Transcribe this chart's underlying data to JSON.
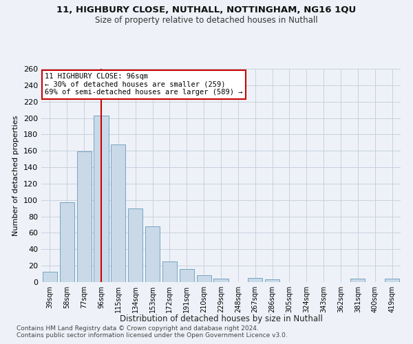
{
  "title1": "11, HIGHBURY CLOSE, NUTHALL, NOTTINGHAM, NG16 1QU",
  "title2": "Size of property relative to detached houses in Nuthall",
  "xlabel": "Distribution of detached houses by size in Nuthall",
  "ylabel": "Number of detached properties",
  "categories": [
    "39sqm",
    "58sqm",
    "77sqm",
    "96sqm",
    "115sqm",
    "134sqm",
    "153sqm",
    "172sqm",
    "191sqm",
    "210sqm",
    "229sqm",
    "248sqm",
    "267sqm",
    "286sqm",
    "305sqm",
    "324sqm",
    "343sqm",
    "362sqm",
    "381sqm",
    "400sqm",
    "419sqm"
  ],
  "values": [
    13,
    97,
    159,
    203,
    168,
    90,
    68,
    25,
    16,
    8,
    4,
    0,
    5,
    3,
    0,
    0,
    0,
    0,
    4,
    0,
    4
  ],
  "bar_color": "#c9d9e8",
  "bar_edge_color": "#6699bb",
  "highlight_bar_index": 3,
  "highlight_color": "#cc0000",
  "ylim": [
    0,
    260
  ],
  "yticks": [
    0,
    20,
    40,
    60,
    80,
    100,
    120,
    140,
    160,
    180,
    200,
    220,
    240,
    260
  ],
  "annotation_text": "11 HIGHBURY CLOSE: 96sqm\n← 30% of detached houses are smaller (259)\n69% of semi-detached houses are larger (589) →",
  "annotation_box_color": "#ffffff",
  "annotation_box_edge_color": "#cc0000",
  "footnote1": "Contains HM Land Registry data © Crown copyright and database right 2024.",
  "footnote2": "Contains public sector information licensed under the Open Government Licence v3.0.",
  "background_color": "#eef2f8",
  "grid_color": "#c8d0de"
}
